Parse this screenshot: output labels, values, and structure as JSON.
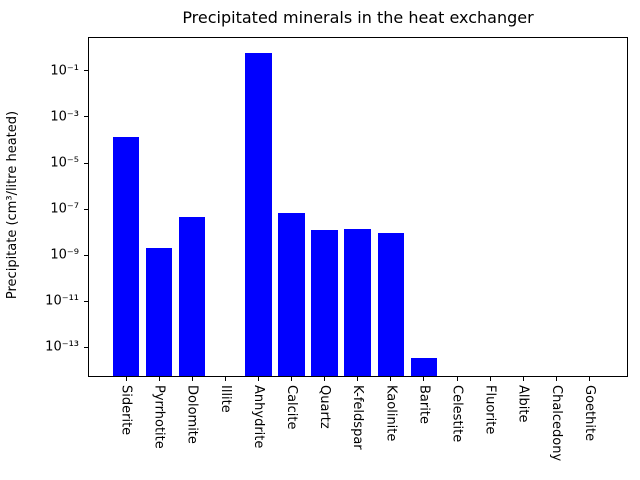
{
  "chart_data": {
    "type": "bar",
    "title": "Precipitated minerals in the heat exchanger",
    "xlabel": "",
    "ylabel": "Precipitate (cm³/litre heated)",
    "yscale": "log",
    "grid": false,
    "legend": null,
    "bar_color": "#0000ff",
    "categories": [
      "Siderite",
      "Pyrrhotite",
      "Dolomite",
      "Illite",
      "Anhydrite",
      "Calcite",
      "Quartz",
      "K-feldspar",
      "Kaolinite",
      "Barite",
      "Celestite",
      "Fluorite",
      "Albite",
      "Chalcedony",
      "Goethite"
    ],
    "values": [
      0.00013,
      2.1e-09,
      4.5e-08,
      0,
      0.6,
      6.7e-08,
      1.2e-08,
      1.4e-08,
      9e-09,
      3.3e-14,
      0,
      0,
      0,
      0,
      0
    ],
    "ytick_exponents": [
      -1,
      -3,
      -5,
      -7,
      -9,
      -11,
      -13
    ],
    "ytick_labels": [
      "10⁻¹",
      "10⁻³",
      "10⁻⁵",
      "10⁻⁷",
      "10⁻⁹",
      "10⁻¹¹",
      "10⁻¹³"
    ],
    "ylim": [
      5.6e-15,
      2.7
    ]
  }
}
